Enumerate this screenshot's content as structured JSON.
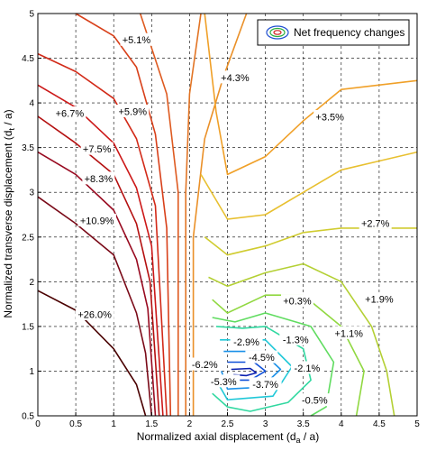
{
  "chart_data": {
    "type": "contour",
    "xlabel": "Normalized axial displacement (d",
    "xlabel_sub": "a",
    "xlabel_tail": " / a)",
    "ylabel": "Normalized transverse displacement (d",
    "ylabel_sub": "t",
    "ylabel_tail": " / a)",
    "xlim": [
      0,
      5
    ],
    "ylim": [
      0.5,
      5
    ],
    "x_ticks": [
      0,
      0.5,
      1,
      1.5,
      2,
      2.5,
      3,
      3.5,
      4,
      4.5,
      5
    ],
    "y_ticks": [
      0.5,
      1,
      1.5,
      2,
      2.5,
      3,
      3.5,
      4,
      4.5,
      5
    ],
    "grid": true,
    "legend": {
      "label": "Net frequency changes",
      "position": "top-right"
    },
    "contour_labels": [
      {
        "text": "+5.1%",
        "x": 1.3,
        "y": 4.7
      },
      {
        "text": "+4.3%",
        "x": 2.6,
        "y": 4.28
      },
      {
        "text": "+6.7%",
        "x": 0.42,
        "y": 3.88
      },
      {
        "text": "+5.9%",
        "x": 1.25,
        "y": 3.9
      },
      {
        "text": "+3.5%",
        "x": 3.85,
        "y": 3.84
      },
      {
        "text": "+7.5%",
        "x": 0.78,
        "y": 3.48
      },
      {
        "text": "+8.3%",
        "x": 0.8,
        "y": 3.15
      },
      {
        "text": "+10.9%",
        "x": 0.78,
        "y": 2.68
      },
      {
        "text": "+2.7%",
        "x": 4.45,
        "y": 2.65
      },
      {
        "text": "+0.3%",
        "x": 3.42,
        "y": 1.78
      },
      {
        "text": "+1.9%",
        "x": 4.5,
        "y": 1.8
      },
      {
        "text": "+26.0%",
        "x": 0.75,
        "y": 1.63
      },
      {
        "text": "+1.1%",
        "x": 4.1,
        "y": 1.42
      },
      {
        "text": "-2.9%",
        "x": 2.75,
        "y": 1.32
      },
      {
        "text": "-1.3%",
        "x": 3.4,
        "y": 1.35
      },
      {
        "text": "-4.5%",
        "x": 2.95,
        "y": 1.15
      },
      {
        "text": "-6.2%",
        "x": 2.2,
        "y": 1.07
      },
      {
        "text": "-2.1%",
        "x": 3.55,
        "y": 1.03
      },
      {
        "text": "-5.3%",
        "x": 2.45,
        "y": 0.88
      },
      {
        "text": "-3.7%",
        "x": 3.0,
        "y": 0.85
      },
      {
        "text": "-0.5%",
        "x": 3.65,
        "y": 0.67
      }
    ],
    "left_contours": [
      {
        "color": "#4a0000",
        "points": [
          [
            0,
            1.9
          ],
          [
            0.5,
            1.68
          ],
          [
            1.0,
            1.25
          ],
          [
            1.3,
            0.85
          ],
          [
            1.42,
            0.5
          ]
        ]
      },
      {
        "color": "#7a0a18",
        "points": [
          [
            0,
            2.95
          ],
          [
            0.5,
            2.65
          ],
          [
            1.0,
            2.3
          ],
          [
            1.3,
            1.65
          ],
          [
            1.42,
            1.2
          ],
          [
            1.5,
            0.5
          ]
        ]
      },
      {
        "color": "#980a20",
        "points": [
          [
            0,
            3.45
          ],
          [
            0.5,
            3.2
          ],
          [
            1.0,
            2.8
          ],
          [
            1.3,
            2.25
          ],
          [
            1.45,
            1.7
          ],
          [
            1.55,
            0.5
          ]
        ]
      },
      {
        "color": "#b41010",
        "points": [
          [
            0,
            3.85
          ],
          [
            0.5,
            3.55
          ],
          [
            1.0,
            3.2
          ],
          [
            1.3,
            2.65
          ],
          [
            1.48,
            2.0
          ],
          [
            1.6,
            0.5
          ]
        ]
      },
      {
        "color": "#cc1818",
        "points": [
          [
            0,
            4.2
          ],
          [
            0.5,
            3.95
          ],
          [
            1.0,
            3.55
          ],
          [
            1.3,
            3.05
          ],
          [
            1.5,
            2.4
          ],
          [
            1.65,
            0.5
          ]
        ]
      },
      {
        "color": "#d22a18",
        "points": [
          [
            0,
            4.55
          ],
          [
            0.5,
            4.35
          ],
          [
            1.0,
            4.05
          ],
          [
            1.3,
            3.6
          ],
          [
            1.55,
            2.85
          ],
          [
            1.7,
            0.5
          ]
        ]
      },
      {
        "color": "#d8401a",
        "points": [
          [
            0.5,
            5
          ],
          [
            1.0,
            4.75
          ],
          [
            1.3,
            4.4
          ],
          [
            1.55,
            3.65
          ],
          [
            1.7,
            2.6
          ],
          [
            1.75,
            0.5
          ]
        ]
      },
      {
        "color": "#de5a20",
        "points": [
          [
            1.35,
            5
          ],
          [
            1.7,
            4.1
          ],
          [
            1.85,
            3.0
          ],
          [
            1.85,
            0.5
          ]
        ]
      },
      {
        "color": "#e27424",
        "points": [
          [
            2.15,
            5
          ],
          [
            2.0,
            4.1
          ],
          [
            1.95,
            3.0
          ],
          [
            1.95,
            0.5
          ]
        ]
      },
      {
        "color": "#ea9028",
        "points": [
          [
            2.75,
            5
          ],
          [
            2.45,
            4.3
          ],
          [
            2.2,
            3.6
          ],
          [
            2.05,
            2.5
          ],
          [
            2.05,
            0.5
          ]
        ]
      }
    ],
    "right_contours": [
      {
        "color": "#f0a028",
        "points": [
          [
            2.2,
            5
          ],
          [
            2.35,
            3.9
          ],
          [
            2.5,
            3.2
          ],
          [
            3.0,
            3.4
          ],
          [
            3.5,
            3.8
          ],
          [
            4.0,
            4.15
          ],
          [
            5.0,
            4.25
          ]
        ]
      },
      {
        "color": "#e8c030",
        "points": [
          [
            2.15,
            3.2
          ],
          [
            2.5,
            2.7
          ],
          [
            3.0,
            2.75
          ],
          [
            3.5,
            3.0
          ],
          [
            4.0,
            3.25
          ],
          [
            4.5,
            3.35
          ],
          [
            5.0,
            3.45
          ]
        ]
      },
      {
        "color": "#d0cc30",
        "points": [
          [
            2.2,
            2.5
          ],
          [
            2.5,
            2.3
          ],
          [
            3.0,
            2.4
          ],
          [
            3.5,
            2.55
          ],
          [
            4.0,
            2.6
          ],
          [
            4.5,
            2.6
          ],
          [
            5.0,
            2.6
          ]
        ]
      },
      {
        "color": "#b4d034",
        "points": [
          [
            2.25,
            2.05
          ],
          [
            2.5,
            1.95
          ],
          [
            3.0,
            2.1
          ],
          [
            3.5,
            2.2
          ],
          [
            4.0,
            2.0
          ],
          [
            4.4,
            1.5
          ],
          [
            4.6,
            1.0
          ],
          [
            4.7,
            0.5
          ]
        ]
      },
      {
        "color": "#90d840",
        "points": [
          [
            2.3,
            1.8
          ],
          [
            2.5,
            1.65
          ],
          [
            3.0,
            1.85
          ],
          [
            3.5,
            1.85
          ],
          [
            4.0,
            1.5
          ],
          [
            4.3,
            1.0
          ],
          [
            4.2,
            0.5
          ]
        ]
      },
      {
        "color": "#60dc60",
        "points": [
          [
            2.3,
            1.6
          ],
          [
            2.6,
            1.55
          ],
          [
            3.0,
            1.65
          ],
          [
            3.6,
            1.5
          ],
          [
            3.9,
            1.1
          ],
          [
            3.8,
            0.6
          ],
          [
            3.6,
            0.5
          ]
        ]
      },
      {
        "color": "#30d8a0",
        "points": [
          [
            2.35,
            1.5
          ],
          [
            2.7,
            1.48
          ],
          [
            3.0,
            1.5
          ],
          [
            3.5,
            1.25
          ],
          [
            3.6,
            0.9
          ],
          [
            3.3,
            0.65
          ],
          [
            2.8,
            0.55
          ],
          [
            2.5,
            0.6
          ],
          [
            2.3,
            0.75
          ]
        ]
      },
      {
        "color": "#20c8d8",
        "points": [
          [
            2.4,
            1.35
          ],
          [
            3.0,
            1.35
          ],
          [
            3.35,
            1.05
          ],
          [
            3.1,
            0.72
          ],
          [
            2.5,
            0.68
          ],
          [
            2.35,
            0.9
          ]
        ]
      },
      {
        "color": "#1a90e8",
        "points": [
          [
            2.45,
            1.22
          ],
          [
            2.95,
            1.22
          ],
          [
            3.2,
            1.02
          ],
          [
            2.95,
            0.82
          ],
          [
            2.5,
            0.8
          ],
          [
            2.42,
            1.0
          ]
        ]
      },
      {
        "color": "#1050d8",
        "points": [
          [
            2.5,
            1.1
          ],
          [
            2.85,
            1.1
          ],
          [
            3.0,
            1.0
          ],
          [
            2.8,
            0.9
          ],
          [
            2.55,
            0.9
          ]
        ]
      },
      {
        "color": "#0a20b0",
        "points": [
          [
            2.55,
            1.02
          ],
          [
            2.8,
            1.03
          ],
          [
            2.88,
            0.98
          ],
          [
            2.75,
            0.95
          ],
          [
            2.58,
            0.96
          ]
        ]
      }
    ]
  }
}
